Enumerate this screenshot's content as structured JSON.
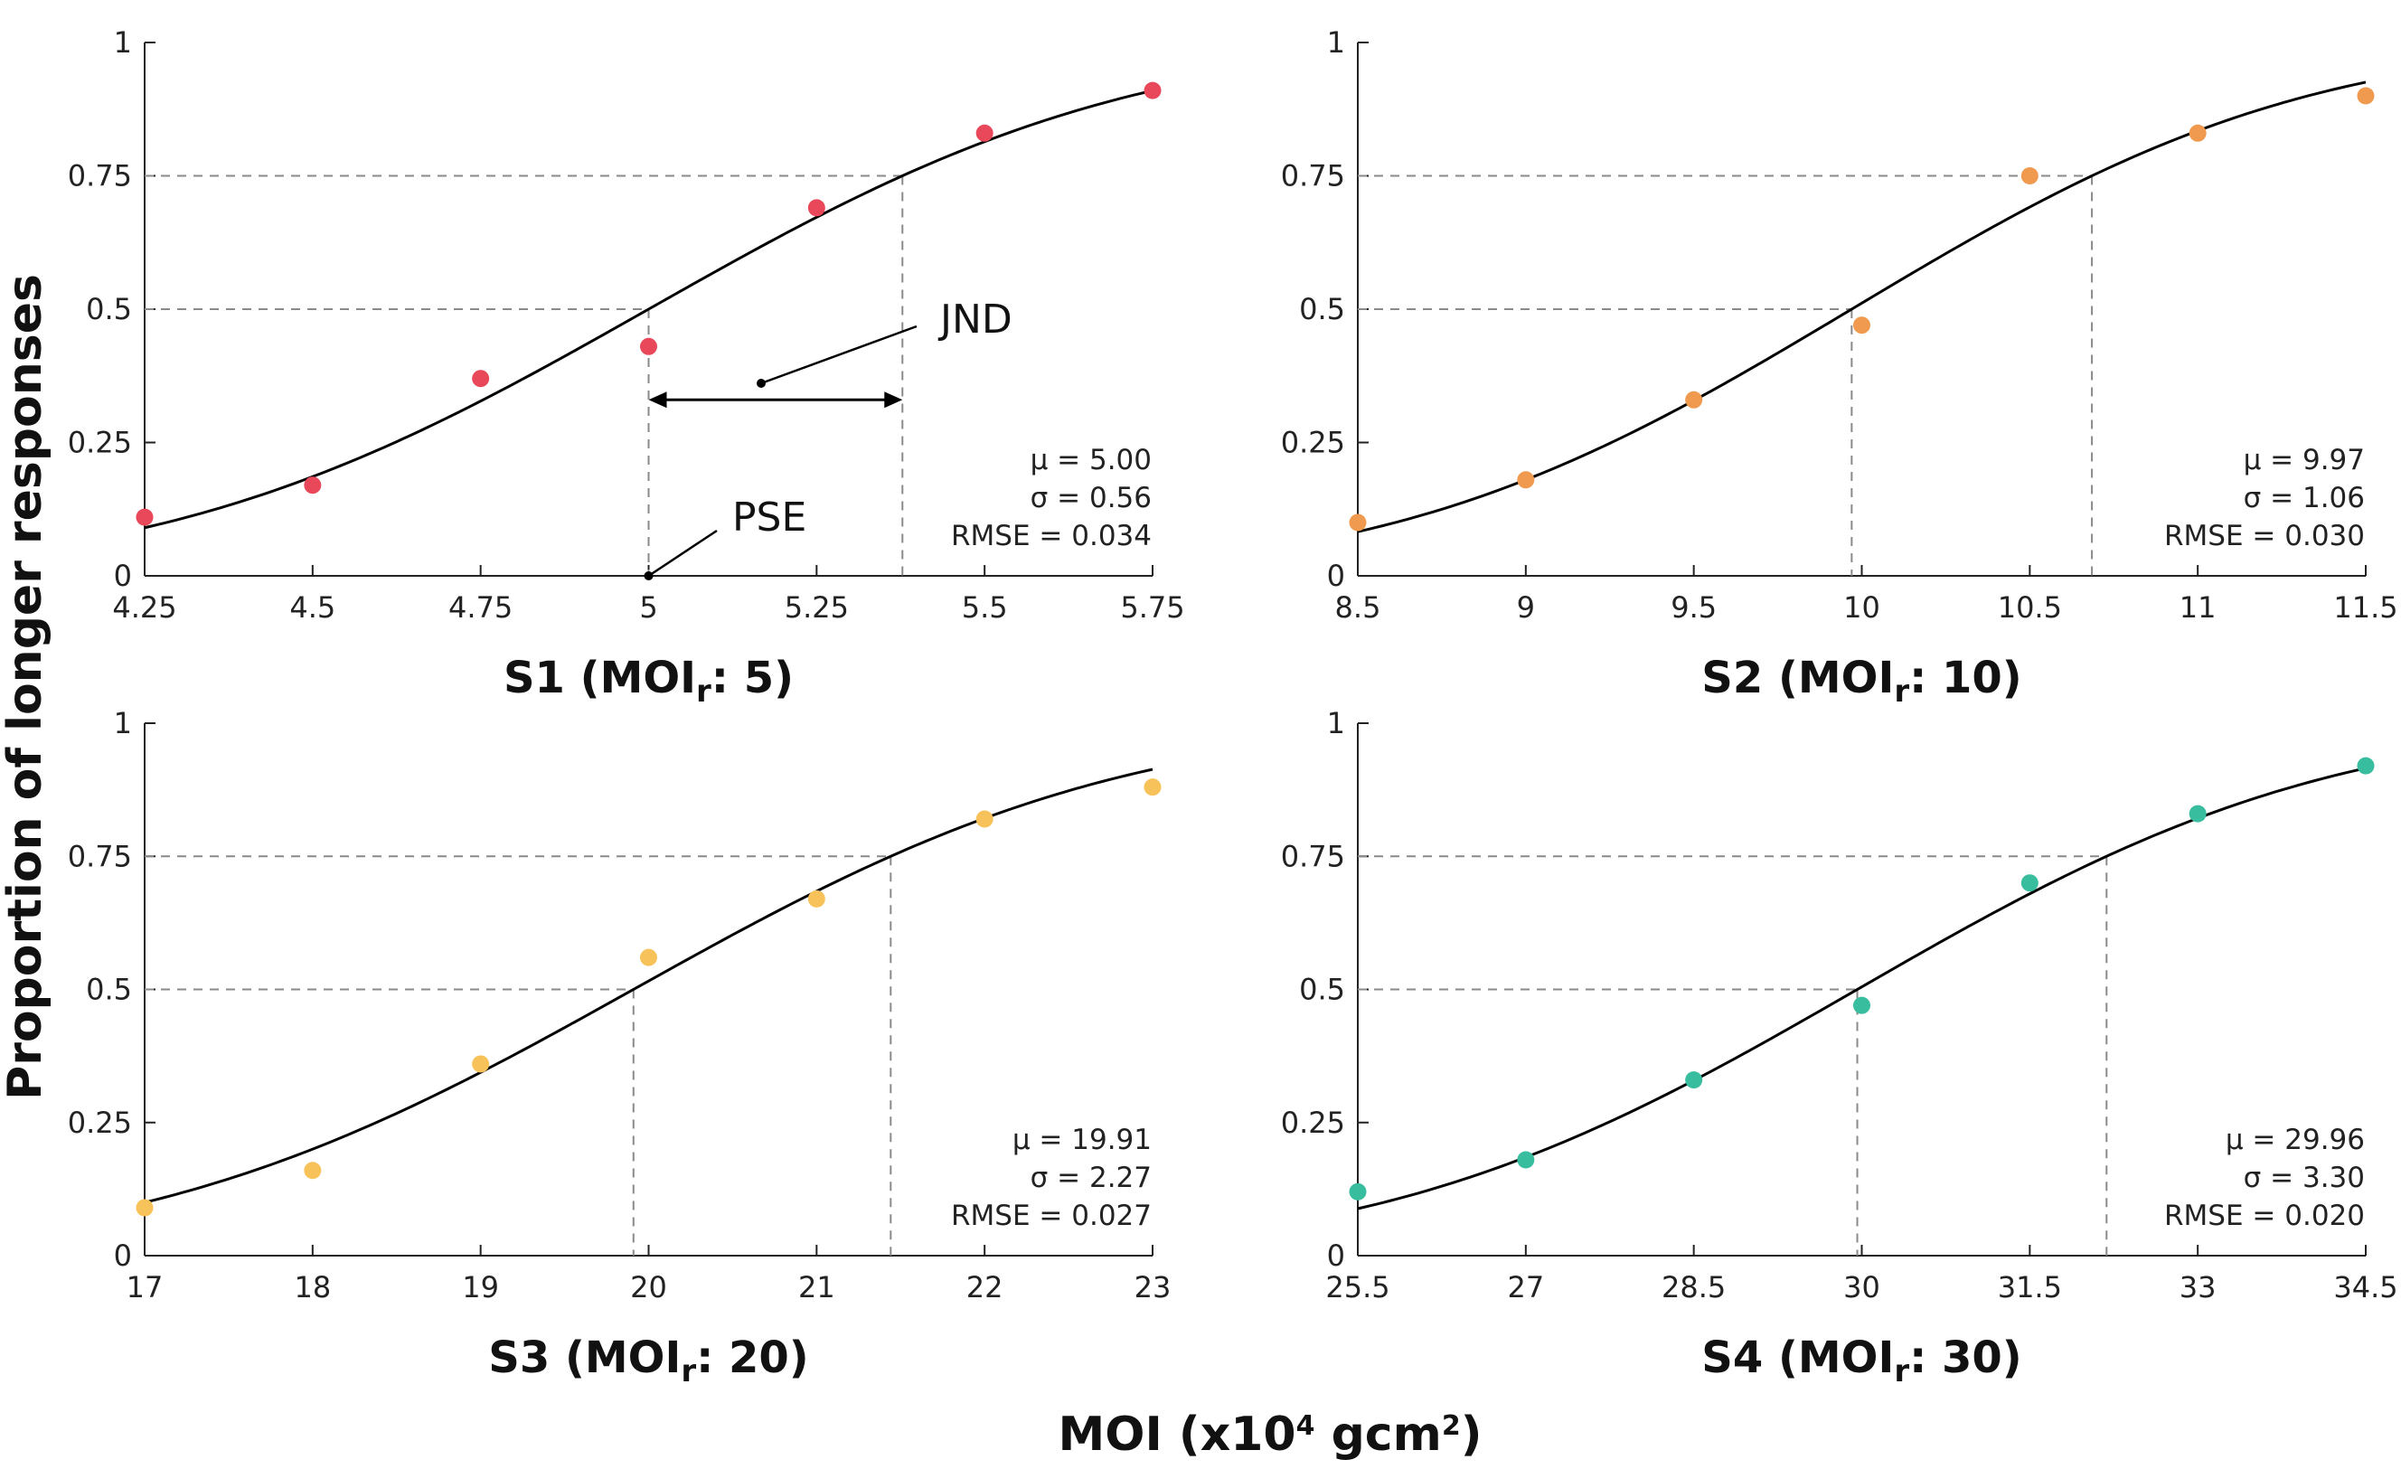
{
  "figure": {
    "ylabel": "Proportion of longer responses",
    "xlabel_main": "MOI (x10",
    "xlabel_exp": "4",
    "xlabel_unit": " gcm",
    "xlabel_exp2": "2",
    "xlabel_close": ")"
  },
  "colors": {
    "curve": "#000000",
    "guide": "#8a8a8a",
    "axis": "#222222",
    "s1": "#e8485a",
    "s2": "#ef9a4f",
    "s3": "#f8c25a",
    "s4": "#38bd9f"
  },
  "annotations": {
    "jnd": "JND",
    "pse": "PSE"
  },
  "chart_data": [
    {
      "type": "scatter",
      "id": "s1",
      "title_prefix": "S1 (MOI",
      "title_sub": "r",
      "title_suffix": ": 5)",
      "color_key": "s1",
      "x_ticks": [
        "4.25",
        "4.5",
        "4.75",
        "5",
        "5.25",
        "5.5",
        "5.75"
      ],
      "xlim": [
        4.25,
        5.75
      ],
      "y_ticks": [
        "0",
        "0.25",
        "0.5",
        "0.75",
        "1"
      ],
      "ylim": [
        0,
        1
      ],
      "points": [
        [
          4.25,
          0.11
        ],
        [
          4.5,
          0.17
        ],
        [
          4.75,
          0.37
        ],
        [
          5.0,
          0.43
        ],
        [
          5.25,
          0.69
        ],
        [
          5.5,
          0.83
        ],
        [
          5.75,
          0.91
        ]
      ],
      "fit": {
        "mu": 5.0,
        "sigma": 0.56
      },
      "stats": {
        "mu": "μ = 5.00",
        "sigma": "σ = 0.56",
        "rmse": "RMSE = 0.034"
      }
    },
    {
      "type": "scatter",
      "id": "s2",
      "title_prefix": "S2 (MOI",
      "title_sub": "r",
      "title_suffix": ": 10)",
      "color_key": "s2",
      "x_ticks": [
        "8.5",
        "9",
        "9.5",
        "10",
        "10.5",
        "11",
        "11.5"
      ],
      "xlim": [
        8.5,
        11.5
      ],
      "y_ticks": [
        "0",
        "0.25",
        "0.5",
        "0.75",
        "1"
      ],
      "ylim": [
        0,
        1
      ],
      "points": [
        [
          8.5,
          0.1
        ],
        [
          9.0,
          0.18
        ],
        [
          9.5,
          0.33
        ],
        [
          10.0,
          0.47
        ],
        [
          10.5,
          0.75
        ],
        [
          11.0,
          0.83
        ],
        [
          11.5,
          0.9
        ]
      ],
      "fit": {
        "mu": 9.97,
        "sigma": 1.06
      },
      "stats": {
        "mu": "μ = 9.97",
        "sigma": "σ = 1.06",
        "rmse": "RMSE = 0.030"
      }
    },
    {
      "type": "scatter",
      "id": "s3",
      "title_prefix": "S3 (MOI",
      "title_sub": "r",
      "title_suffix": ": 20)",
      "color_key": "s3",
      "x_ticks": [
        "17",
        "18",
        "19",
        "20",
        "21",
        "22",
        "23"
      ],
      "xlim": [
        17,
        23
      ],
      "y_ticks": [
        "0",
        "0.25",
        "0.5",
        "0.75",
        "1"
      ],
      "ylim": [
        0,
        1
      ],
      "points": [
        [
          17,
          0.09
        ],
        [
          18,
          0.16
        ],
        [
          19,
          0.36
        ],
        [
          20,
          0.56
        ],
        [
          21,
          0.67
        ],
        [
          22,
          0.82
        ],
        [
          23,
          0.88
        ]
      ],
      "fit": {
        "mu": 19.91,
        "sigma": 2.27
      },
      "stats": {
        "mu": "μ = 19.91",
        "sigma": "σ = 2.27",
        "rmse": "RMSE = 0.027"
      }
    },
    {
      "type": "scatter",
      "id": "s4",
      "title_prefix": "S4 (MOI",
      "title_sub": "r",
      "title_suffix": ": 30)",
      "color_key": "s4",
      "x_ticks": [
        "25.5",
        "27",
        "28.5",
        "30",
        "31.5",
        "33",
        "34.5"
      ],
      "xlim": [
        25.5,
        34.5
      ],
      "y_ticks": [
        "0",
        "0.25",
        "0.5",
        "0.75",
        "1"
      ],
      "ylim": [
        0,
        1
      ],
      "points": [
        [
          25.5,
          0.12
        ],
        [
          27,
          0.18
        ],
        [
          28.5,
          0.33
        ],
        [
          30,
          0.47
        ],
        [
          31.5,
          0.7
        ],
        [
          33,
          0.83
        ],
        [
          34.5,
          0.92
        ]
      ],
      "fit": {
        "mu": 29.96,
        "sigma": 3.3
      },
      "stats": {
        "mu": "μ = 29.96",
        "sigma": "σ = 3.30",
        "rmse": "RMSE = 0.020"
      }
    }
  ]
}
